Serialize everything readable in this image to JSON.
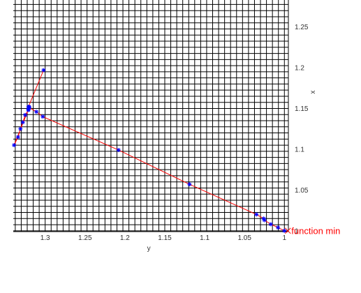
{
  "chart_data": {
    "type": "line",
    "xlabel": "y",
    "ylabel": "x",
    "xlim": [
      0.995,
      1.34
    ],
    "ylim": [
      0.999,
      1.283
    ],
    "x_reversed": true,
    "x_ticks": [
      {
        "value": 1.3,
        "label": "1.3"
      },
      {
        "value": 1.25,
        "label": "1.25"
      },
      {
        "value": 1.2,
        "label": "1.2"
      },
      {
        "value": 1.15,
        "label": "1.15"
      },
      {
        "value": 1.1,
        "label": "1.1"
      },
      {
        "value": 1.05,
        "label": "1.05"
      },
      {
        "value": 1.0,
        "label": "1"
      }
    ],
    "y_ticks": [
      {
        "value": 1.25,
        "label": "1.25"
      },
      {
        "value": 1.2,
        "label": "1.2"
      },
      {
        "value": 1.15,
        "label": "1.15"
      },
      {
        "value": 1.1,
        "label": "1.1"
      },
      {
        "value": 1.05,
        "label": "1.05"
      },
      {
        "value": 1.0,
        "label": "1"
      }
    ],
    "grid": true,
    "grid_step": 0.0075,
    "series": [
      {
        "color": "#ff0000",
        "marker": "asterisk",
        "marker_color": "#0000ff",
        "points": [
          {
            "x": 1.302,
            "y": 1.197
          },
          {
            "x": 1.321,
            "y": 1.152
          },
          {
            "x": 1.321,
            "y": 1.149
          },
          {
            "x": 1.32,
            "y": 1.152
          },
          {
            "x": 1.321,
            "y": 1.148
          },
          {
            "x": 1.325,
            "y": 1.142
          },
          {
            "x": 1.328,
            "y": 1.133
          },
          {
            "x": 1.331,
            "y": 1.125
          },
          {
            "x": 1.334,
            "y": 1.115
          },
          {
            "x": 1.339,
            "y": 1.105
          },
          {
            "x": 1.32,
            "y": 1.151
          },
          {
            "x": 1.311,
            "y": 1.146
          },
          {
            "x": 1.303,
            "y": 1.14
          },
          {
            "x": 1.208,
            "y": 1.099
          },
          {
            "x": 1.119,
            "y": 1.057
          },
          {
            "x": 1.035,
            "y": 1.02
          },
          {
            "x": 1.026,
            "y": 1.015
          },
          {
            "x": 1.025,
            "y": 1.013
          },
          {
            "x": 1.017,
            "y": 1.008
          },
          {
            "x": 1.008,
            "y": 1.004
          },
          {
            "x": 1.0,
            "y": 1.0
          }
        ]
      }
    ],
    "annotations": [
      {
        "text": "function min",
        "x": 1.0,
        "y": 1.0,
        "color": "#ff0000"
      }
    ]
  }
}
